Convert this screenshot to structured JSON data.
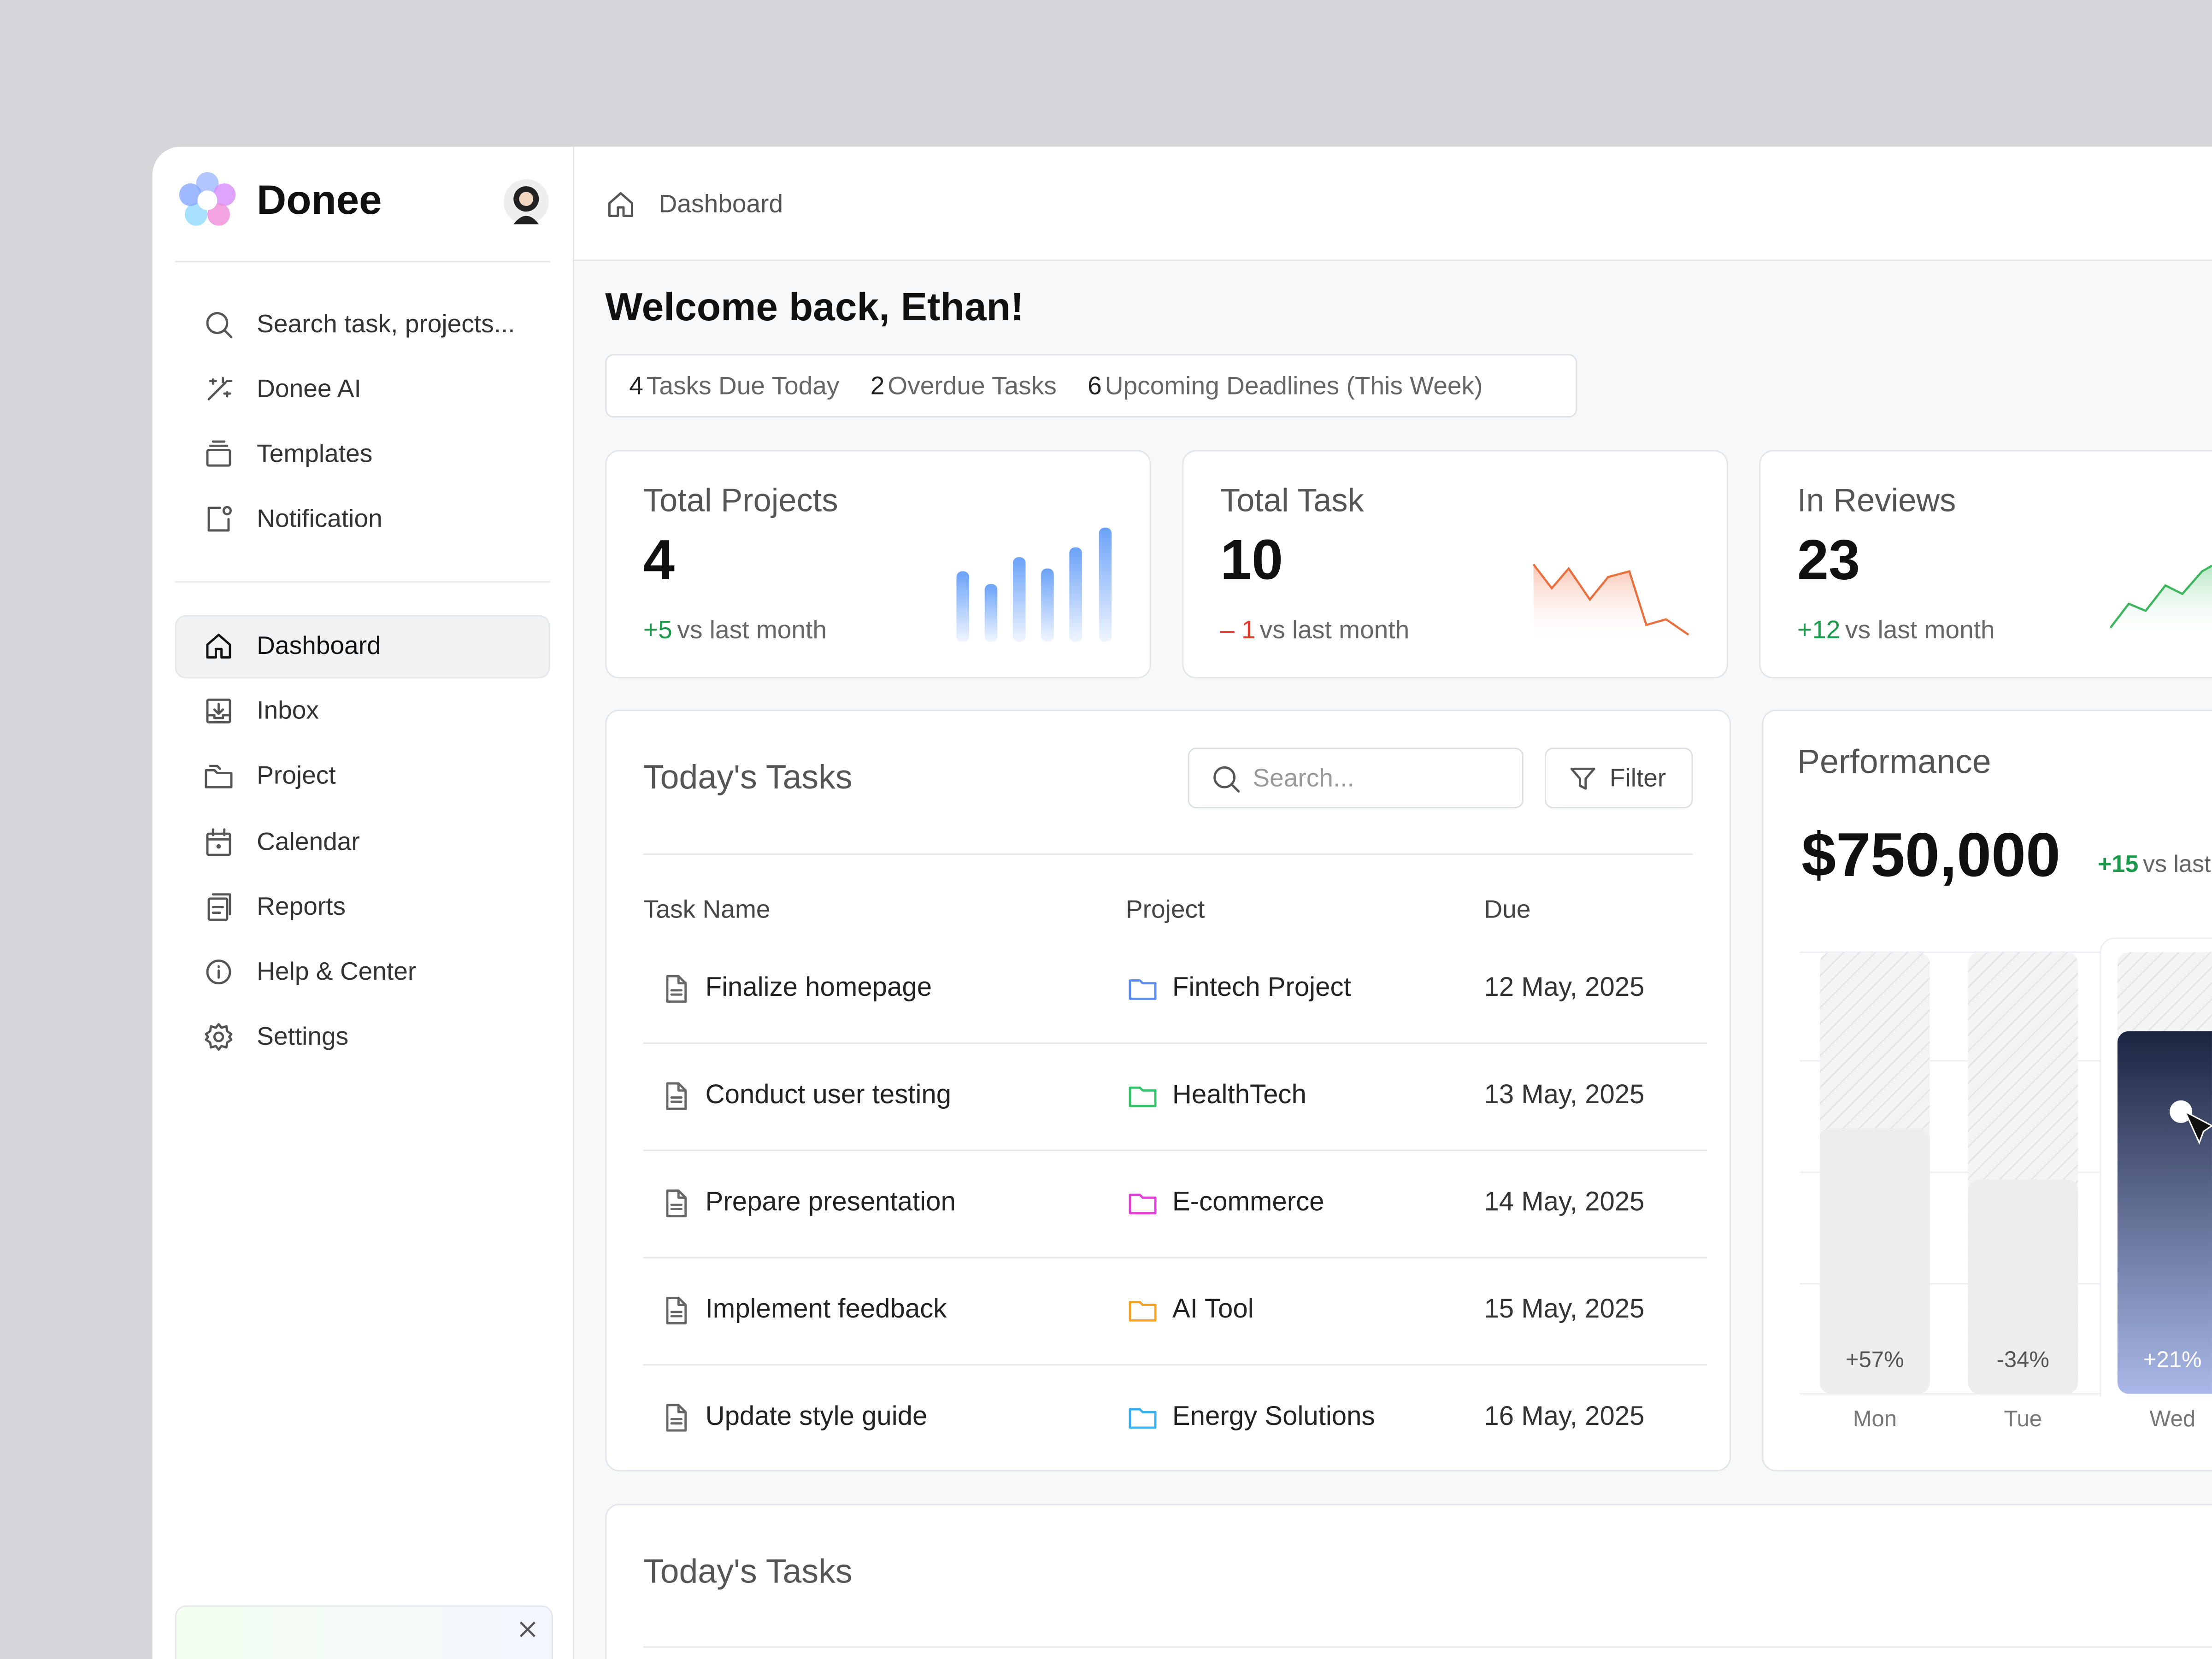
{
  "brand": "Donee",
  "sidebar": {
    "search_placeholder": "Search task, projects...",
    "top_items": [
      "Donee AI",
      "Templates",
      "Notification"
    ],
    "nav": [
      "Dashboard",
      "Inbox",
      "Project",
      "Calendar",
      "Reports",
      "Help & Center",
      "Settings"
    ]
  },
  "breadcrumb": "Dashboard",
  "welcome": "Welcome back, Ethan!",
  "summary": [
    {
      "count": "4",
      "label": "Tasks Due Today"
    },
    {
      "count": "2",
      "label": "Overdue Tasks"
    },
    {
      "count": "6",
      "label": "Upcoming Deadlines (This Week)"
    }
  ],
  "stats": [
    {
      "title": "Total Projects",
      "value": "4",
      "change": "+5",
      "change_text": "vs last month",
      "trend": "up"
    },
    {
      "title": "Total Task",
      "value": "10",
      "change": "– 1",
      "change_text": "vs last month",
      "trend": "down"
    },
    {
      "title": "In Reviews",
      "value": "23",
      "change": "+12",
      "change_text": "vs last month",
      "trend": "up"
    }
  ],
  "tasks": {
    "title": "Today's Tasks",
    "search_placeholder": "Search...",
    "filter": "Filter",
    "columns": [
      "Task Name",
      "Project",
      "Due"
    ],
    "rows": [
      {
        "task": "Finalize homepage",
        "project": "Fintech Project",
        "due": "12 May, 2025",
        "color": "#5b8def"
      },
      {
        "task": "Conduct user testing",
        "project": "HealthTech",
        "due": "13 May, 2025",
        "color": "#34c46a"
      },
      {
        "task": "Prepare presentation",
        "project": "E-commerce",
        "due": "14 May, 2025",
        "color": "#e040d8"
      },
      {
        "task": "Implement feedback",
        "project": "AI Tool",
        "due": "15 May, 2025",
        "color": "#f5a623"
      },
      {
        "task": "Update style guide",
        "project": "Energy Solutions",
        "due": "16 May, 2025",
        "color": "#3bb0f0"
      }
    ]
  },
  "performance": {
    "title": "Performance",
    "amount": "$750,000",
    "change": "+15",
    "change_text": "vs last",
    "bars": [
      {
        "day": "Mon",
        "label": "+57%"
      },
      {
        "day": "Tue",
        "label": "-34%"
      },
      {
        "day": "Wed",
        "label": "+21%"
      }
    ]
  },
  "bottom_card": {
    "title": "Today's Tasks"
  }
}
